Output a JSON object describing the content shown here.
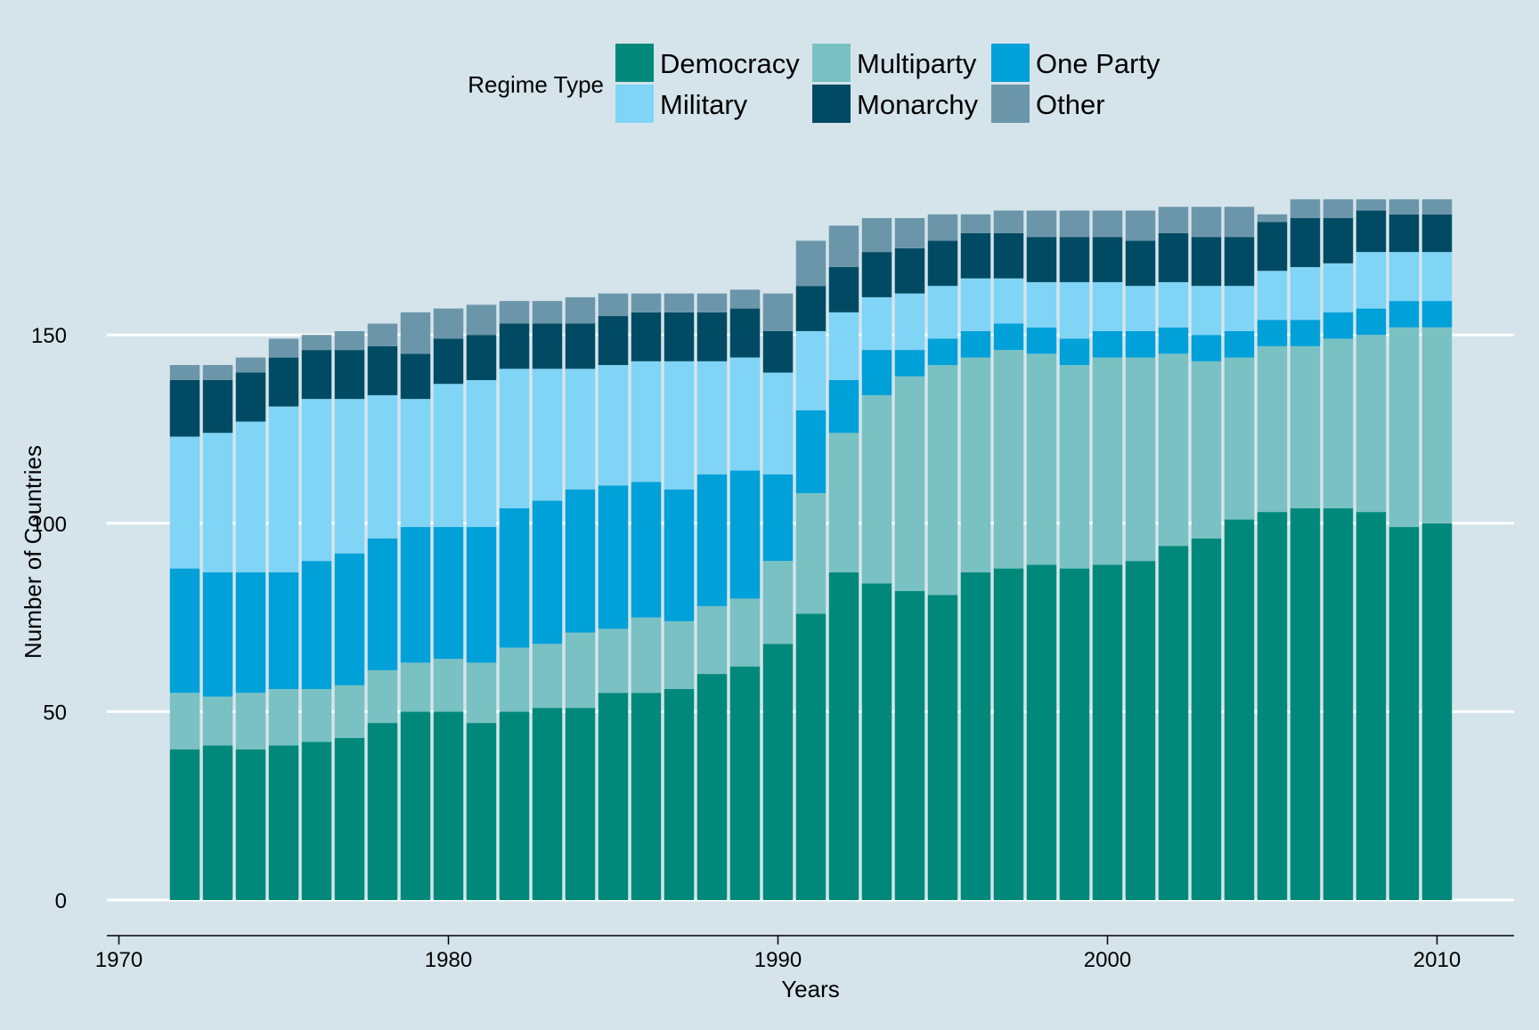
{
  "chart_data": {
    "type": "bar",
    "stacked": true,
    "xlabel": "Years",
    "ylabel": "Number of Countries",
    "xlim": [
      1970,
      2012
    ],
    "ylim": [
      0,
      190
    ],
    "grid": "horizontal",
    "legend": {
      "title": "Regime Type",
      "placement": "top-center"
    },
    "x_ticks": [
      "1970",
      "1980",
      "1990",
      "2000",
      "2010"
    ],
    "y_ticks": [
      "0",
      "50",
      "100",
      "150"
    ],
    "categories": [
      1972,
      1973,
      1974,
      1975,
      1976,
      1977,
      1978,
      1979,
      1980,
      1981,
      1982,
      1983,
      1984,
      1985,
      1986,
      1987,
      1988,
      1989,
      1990,
      1991,
      1992,
      1993,
      1994,
      1995,
      1996,
      1997,
      1998,
      1999,
      2000,
      2001,
      2002,
      2003,
      2004,
      2005,
      2006,
      2007,
      2008,
      2009,
      2010
    ],
    "series": [
      {
        "name": "Democracy",
        "color": "#00897b",
        "values": [
          40,
          41,
          40,
          41,
          42,
          43,
          47,
          50,
          50,
          47,
          50,
          51,
          51,
          55,
          55,
          56,
          60,
          62,
          68,
          76,
          87,
          84,
          82,
          81,
          87,
          88,
          89,
          88,
          89,
          90,
          94,
          96,
          101,
          103,
          104,
          104,
          103,
          99,
          100
        ]
      },
      {
        "name": "Multiparty",
        "color": "#79c1c2",
        "values": [
          15,
          13,
          15,
          15,
          14,
          14,
          14,
          13,
          14,
          16,
          17,
          17,
          20,
          17,
          20,
          18,
          18,
          18,
          22,
          32,
          37,
          50,
          57,
          61,
          57,
          58,
          56,
          54,
          55,
          54,
          51,
          47,
          43,
          44,
          43,
          45,
          47,
          53,
          52
        ]
      },
      {
        "name": "One Party",
        "color": "#00a0d9",
        "values": [
          33,
          33,
          32,
          31,
          34,
          35,
          35,
          36,
          35,
          36,
          37,
          38,
          38,
          38,
          36,
          35,
          35,
          34,
          23,
          22,
          14,
          12,
          7,
          7,
          7,
          7,
          7,
          7,
          7,
          7,
          7,
          7,
          7,
          7,
          7,
          7,
          7,
          7,
          7
        ]
      },
      {
        "name": "Military",
        "color": "#80d4f6",
        "values": [
          35,
          37,
          40,
          44,
          43,
          41,
          38,
          34,
          38,
          39,
          37,
          35,
          32,
          32,
          32,
          34,
          30,
          30,
          27,
          21,
          18,
          14,
          15,
          14,
          14,
          12,
          12,
          15,
          13,
          12,
          12,
          13,
          12,
          13,
          14,
          13,
          15,
          13,
          13
        ]
      },
      {
        "name": "Monarchy",
        "color": "#004b63",
        "values": [
          15,
          14,
          13,
          13,
          13,
          13,
          13,
          12,
          12,
          12,
          12,
          12,
          12,
          13,
          13,
          13,
          13,
          13,
          11,
          12,
          12,
          12,
          12,
          12,
          12,
          12,
          12,
          12,
          12,
          12,
          13,
          13,
          13,
          13,
          13,
          12,
          11,
          10,
          10
        ]
      },
      {
        "name": "Other",
        "color": "#6b96aa",
        "values": [
          4,
          4,
          4,
          5,
          4,
          5,
          6,
          11,
          8,
          8,
          6,
          6,
          7,
          6,
          5,
          5,
          5,
          5,
          10,
          12,
          11,
          9,
          8,
          7,
          5,
          6,
          7,
          7,
          7,
          8,
          7,
          8,
          8,
          2,
          5,
          5,
          3,
          4,
          4
        ]
      }
    ]
  }
}
